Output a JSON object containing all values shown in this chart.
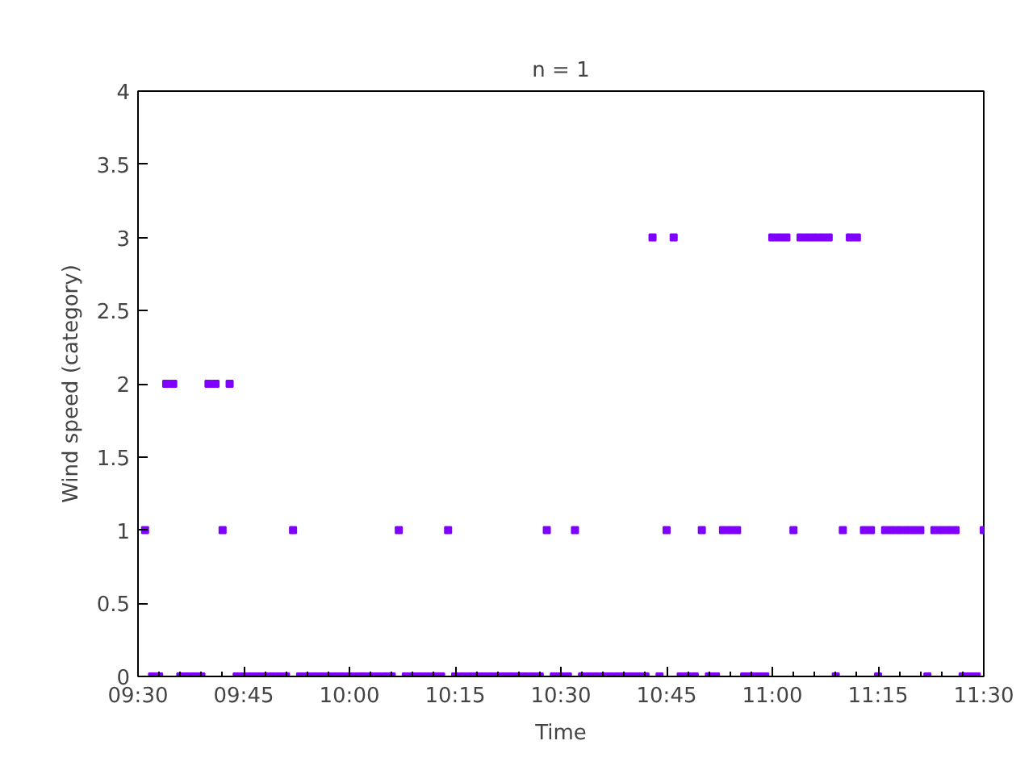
{
  "chart_data": {
    "type": "scatter",
    "title": "n = 1",
    "xlabel": "Time",
    "ylabel": "Wind speed (category)",
    "x": [
      9.5167,
      9.5333,
      9.55,
      9.5667,
      9.5833,
      9.6,
      9.6167,
      9.6333,
      9.65,
      9.6667,
      9.6833,
      9.7,
      9.7167,
      9.7333,
      9.75,
      9.7667,
      9.7833,
      9.8,
      9.8167,
      9.8333,
      9.85,
      9.8667,
      9.8833,
      9.9,
      9.9167,
      9.9333,
      9.95,
      9.9667,
      9.9833,
      10,
      10.0167,
      10.0333,
      10.05,
      10.0667,
      10.0833,
      10.1,
      10.1167,
      10.1333,
      10.15,
      10.1667,
      10.1833,
      10.2,
      10.2167,
      10.2333,
      10.25,
      10.2667,
      10.2833,
      10.3,
      10.3167,
      10.3333,
      10.35,
      10.3667,
      10.3833,
      10.4,
      10.4167,
      10.4333,
      10.45,
      10.4667,
      10.4833,
      10.5,
      10.5167,
      10.5333,
      10.55,
      10.5667,
      10.5833,
      10.6,
      10.6167,
      10.6333,
      10.65,
      10.6667,
      10.6833,
      10.7,
      10.7167,
      10.7333,
      10.75,
      10.7667,
      10.7833,
      10.8,
      10.8167,
      10.8333,
      10.85,
      10.8667,
      10.8833,
      10.9,
      10.9167,
      10.9333,
      10.95,
      10.9667,
      10.9833,
      11,
      11.0167,
      11.0333,
      11.05,
      11.0667,
      11.0833,
      11.1,
      11.1167,
      11.1333,
      11.15,
      11.1667,
      11.1833,
      11.2,
      11.2167,
      11.2333,
      11.25,
      11.2667,
      11.2833,
      11.3,
      11.3167,
      11.3333,
      11.35,
      11.3667,
      11.3833,
      11.4,
      11.4167,
      11.4333,
      11.45,
      11.4667,
      11.4833,
      11.5
    ],
    "values": [
      1,
      0,
      0,
      2,
      2,
      0,
      0,
      0,
      0,
      2,
      2,
      1,
      2,
      0,
      0,
      0,
      0,
      0,
      0,
      0,
      0,
      1,
      0,
      0,
      0,
      0,
      0,
      0,
      0,
      0,
      0,
      0,
      0,
      0,
      0,
      0,
      1,
      0,
      0,
      0,
      0,
      0,
      0,
      1,
      0,
      0,
      0,
      0,
      0,
      0,
      0,
      0,
      0,
      0,
      0,
      0,
      0,
      1,
      0,
      0,
      0,
      1,
      0,
      0,
      0,
      0,
      0,
      0,
      0,
      0,
      0,
      0,
      3,
      0,
      1,
      3,
      0,
      0,
      0,
      1,
      0,
      0,
      1,
      1,
      1,
      0,
      0,
      0,
      0,
      3,
      3,
      3,
      1,
      3,
      3,
      3,
      3,
      3,
      0,
      1,
      3,
      3,
      1,
      1,
      0,
      1,
      1,
      1,
      1,
      1,
      1,
      0,
      1,
      1,
      1,
      1,
      0,
      0,
      0,
      1
    ],
    "color": "#8000ff",
    "marker": "square",
    "grid": false,
    "xlim": [
      9.5,
      11.5
    ],
    "xticks": [
      {
        "value": 9.5,
        "label": "09:30"
      },
      {
        "value": 9.75,
        "label": "09:45"
      },
      {
        "value": 10,
        "label": "10:00"
      },
      {
        "value": 10.25,
        "label": "10:15"
      },
      {
        "value": 10.5,
        "label": "10:30"
      },
      {
        "value": 10.75,
        "label": "10:45"
      },
      {
        "value": 11,
        "label": "11:00"
      },
      {
        "value": 11.25,
        "label": "11:15"
      },
      {
        "value": 11.5,
        "label": "11:30"
      }
    ],
    "ylim": [
      0,
      4
    ],
    "yticks": [
      0,
      0.5,
      1,
      1.5,
      2,
      2.5,
      3,
      3.5,
      4
    ]
  }
}
